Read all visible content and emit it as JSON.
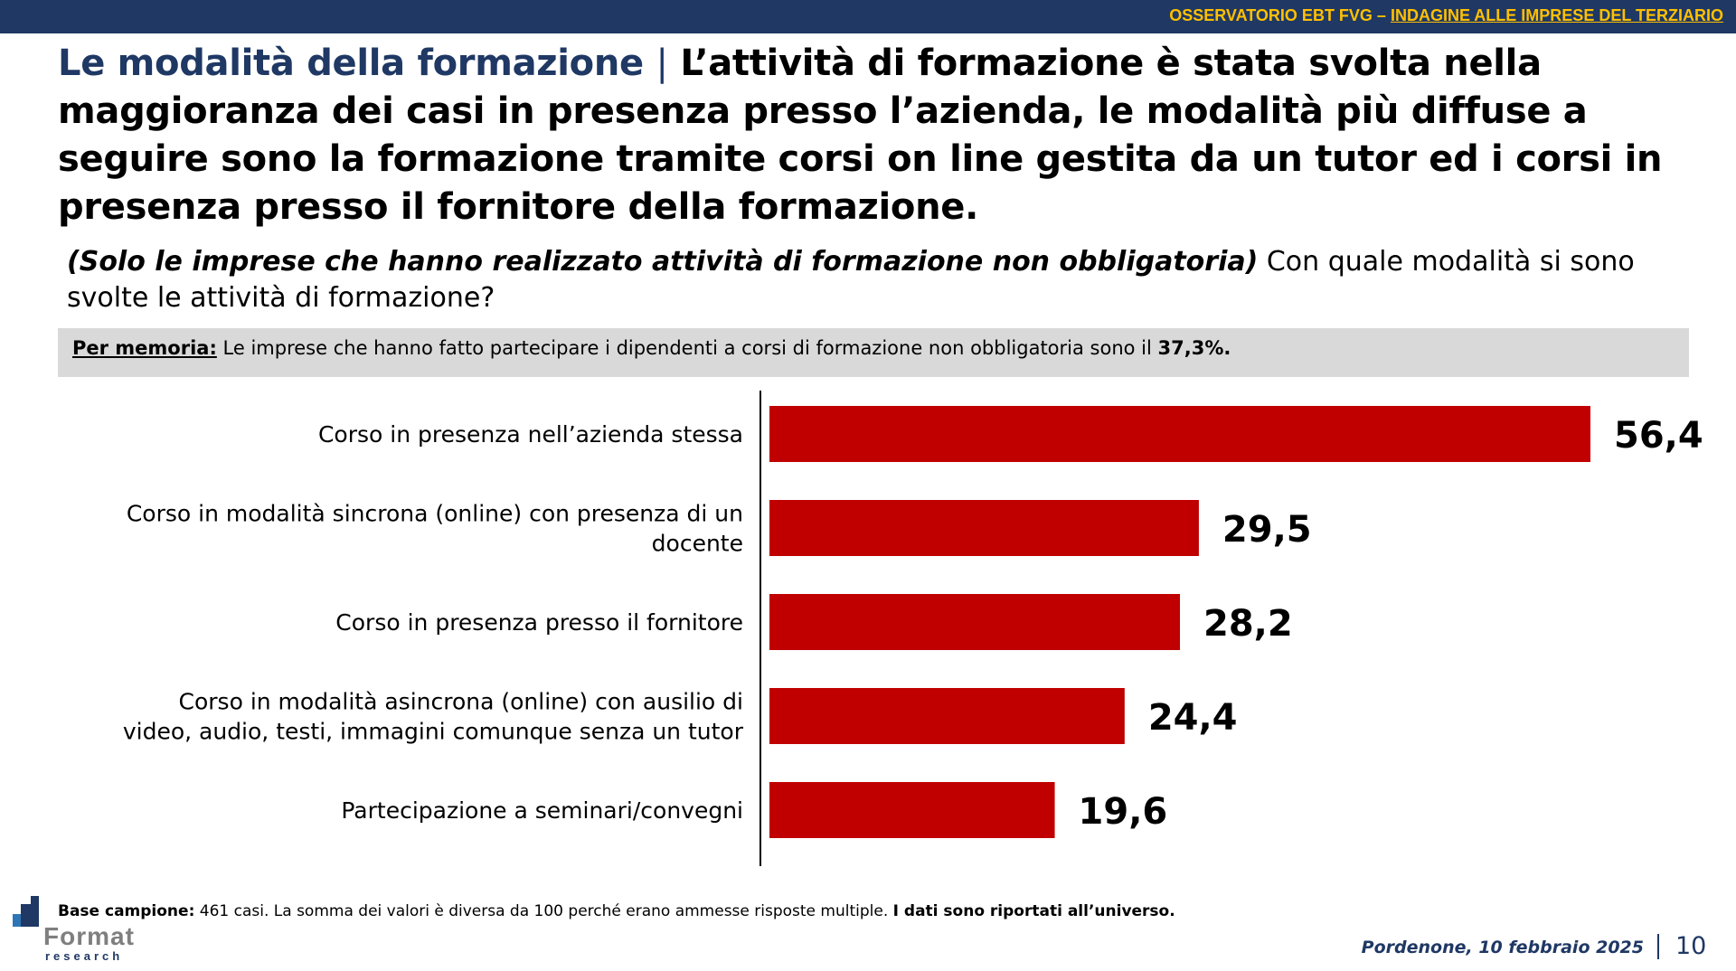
{
  "header": {
    "observatory": "OSSERVATORIO EBT FVG –",
    "survey": "INDAGINE ALLE IMPRESE DEL TERZIARIO"
  },
  "title": {
    "topic": "Le modalità della formazione",
    "separator": "|",
    "statement": "L’attività di formazione è stata svolta nella maggioranza dei casi in presenza presso l’azienda, le modalità più diffuse a seguire sono la formazione tramite corsi on line gestita da un tutor ed i corsi in presenza presso il fornitore della formazione."
  },
  "question": {
    "filter": "(Solo le imprese che hanno realizzato attività di formazione non obbligatoria)",
    "text": "Con quale modalità si sono svolte le attività di formazione?"
  },
  "memo": {
    "label": "Per memoria:",
    "text": "Le imprese che hanno fatto partecipare i dipendenti a corsi di formazione non obbligatoria sono il",
    "value": "37,3%."
  },
  "chart_data": {
    "type": "bar",
    "orientation": "horizontal",
    "categories": [
      "Corso in presenza nell’azienda stessa",
      "Corso in modalità sincrona (online) con presenza di un docente",
      "Corso in presenza presso il fornitore",
      "Corso in modalità asincrona (online) con ausilio di video, audio, testi, immagini comunque senza un tutor",
      "Partecipazione a seminari/convegni"
    ],
    "category_lines": [
      [
        "Corso in presenza nell’azienda stessa"
      ],
      [
        "Corso in modalità sincrona (online) con presenza di un",
        "docente"
      ],
      [
        "Corso in presenza presso il fornitore"
      ],
      [
        "Corso in modalità asincrona (online) con ausilio di",
        "video, audio, testi, immagini comunque senza un tutor"
      ],
      [
        "Partecipazione a seminari/convegni"
      ]
    ],
    "values": [
      56.4,
      29.5,
      28.2,
      24.4,
      19.6
    ],
    "value_labels": [
      "56,4",
      "29,5",
      "28,2",
      "24,4",
      "19,6"
    ],
    "xlim": [
      0,
      56.4
    ],
    "bar_color": "#c00000",
    "grid": false,
    "legend": "none"
  },
  "footer": {
    "base_label": "Base campione:",
    "base_text": "461 casi. La somma dei valori è diversa da 100 perché erano ammesse risposte multiple.",
    "base_bold": "I dati sono riportati all’universo.",
    "logo": "Format",
    "logo_sub": "research",
    "place_date": "Pordenone, 10 febbraio 2025",
    "page_number": "10"
  },
  "colors": {
    "header_bg": "#1f3864",
    "header_text": "#ffc000",
    "title_topic": "#1f3864",
    "memo_bg": "#d9d9d9",
    "bar": "#c00000"
  }
}
